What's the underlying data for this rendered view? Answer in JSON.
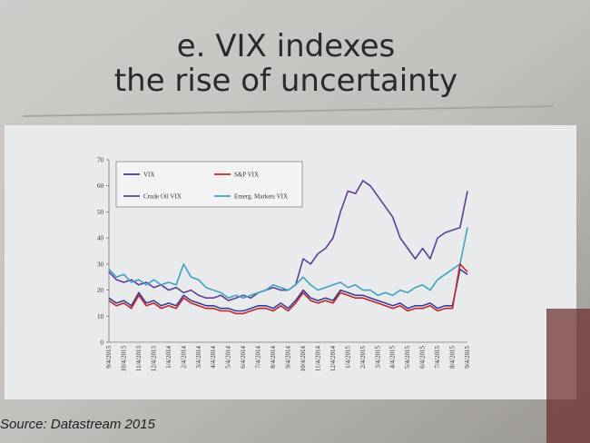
{
  "slide": {
    "title_lines": [
      "e. VIX indexes",
      "the rise of uncertainty"
    ],
    "source": "Source: Datastream 2015"
  },
  "chart_data": {
    "type": "line",
    "categories": [
      "9/4/2013",
      null,
      "10/4/2013",
      null,
      "11/4/2013",
      null,
      "12/4/2013",
      null,
      "1/4/2014",
      null,
      "2/4/2014",
      null,
      "3/4/2014",
      null,
      "4/4/2014",
      null,
      "5/4/2014",
      null,
      "6/4/2014",
      null,
      "7/4/2014",
      null,
      "8/4/2014",
      null,
      "9/4/2014",
      null,
      "10/4/2014",
      null,
      "11/4/2014",
      null,
      "12/4/2014",
      null,
      "1/4/2015",
      null,
      "2/4/2015",
      null,
      "3/4/2015",
      null,
      "4/4/2015",
      null,
      "5/4/2015",
      null,
      "6/4/2015",
      null,
      "7/4/2015",
      null,
      "8/4/2015",
      null,
      "9/4/2015"
    ],
    "series": [
      {
        "name": "VIX",
        "color": "#3b3f95",
        "values": [
          17,
          15,
          16,
          14,
          19,
          15,
          16,
          14,
          15,
          14,
          18,
          16,
          15,
          14,
          14,
          13,
          13,
          12,
          12,
          13,
          14,
          14,
          13,
          15,
          13,
          16,
          20,
          17,
          16,
          17,
          16,
          20,
          19,
          18,
          18,
          17,
          16,
          15,
          14,
          15,
          13,
          14,
          14,
          15,
          13,
          14,
          14,
          28,
          26
        ]
      },
      {
        "name": "S&P VIX",
        "color": "#c0262c",
        "values": [
          16,
          14,
          15,
          13,
          18,
          14,
          15,
          13,
          14,
          13,
          17,
          15,
          14,
          13,
          13,
          12,
          12,
          11,
          11,
          12,
          13,
          13,
          12,
          14,
          12,
          15,
          19,
          16,
          15,
          16,
          15,
          19,
          18,
          17,
          17,
          16,
          15,
          14,
          13,
          14,
          12,
          13,
          13,
          14,
          12,
          13,
          13,
          30,
          27
        ]
      },
      {
        "name": "Crude Oil VIX",
        "color": "#5b3f9a",
        "values": [
          27,
          24,
          23,
          24,
          22,
          23,
          21,
          22,
          20,
          21,
          19,
          20,
          18,
          17,
          17,
          18,
          16,
          17,
          18,
          17,
          19,
          20,
          21,
          20,
          20,
          22,
          32,
          30,
          34,
          36,
          40,
          50,
          58,
          57,
          62,
          60,
          56,
          52,
          48,
          40,
          36,
          32,
          36,
          32,
          40,
          42,
          43,
          44,
          58
        ]
      },
      {
        "name": "Emerg. Markets VIX",
        "color": "#3fa3c4",
        "values": [
          28,
          25,
          26,
          23,
          24,
          22,
          24,
          22,
          23,
          22,
          30,
          25,
          24,
          21,
          20,
          19,
          17,
          18,
          17,
          18,
          19,
          20,
          22,
          21,
          20,
          22,
          25,
          22,
          20,
          21,
          22,
          23,
          21,
          22,
          20,
          20,
          18,
          19,
          18,
          20,
          19,
          21,
          22,
          20,
          24,
          26,
          28,
          30,
          44
        ]
      }
    ],
    "ylim": [
      0,
      70
    ],
    "yticks": [
      0,
      10,
      20,
      30,
      40,
      50,
      60,
      70
    ],
    "legend": "top-left"
  }
}
